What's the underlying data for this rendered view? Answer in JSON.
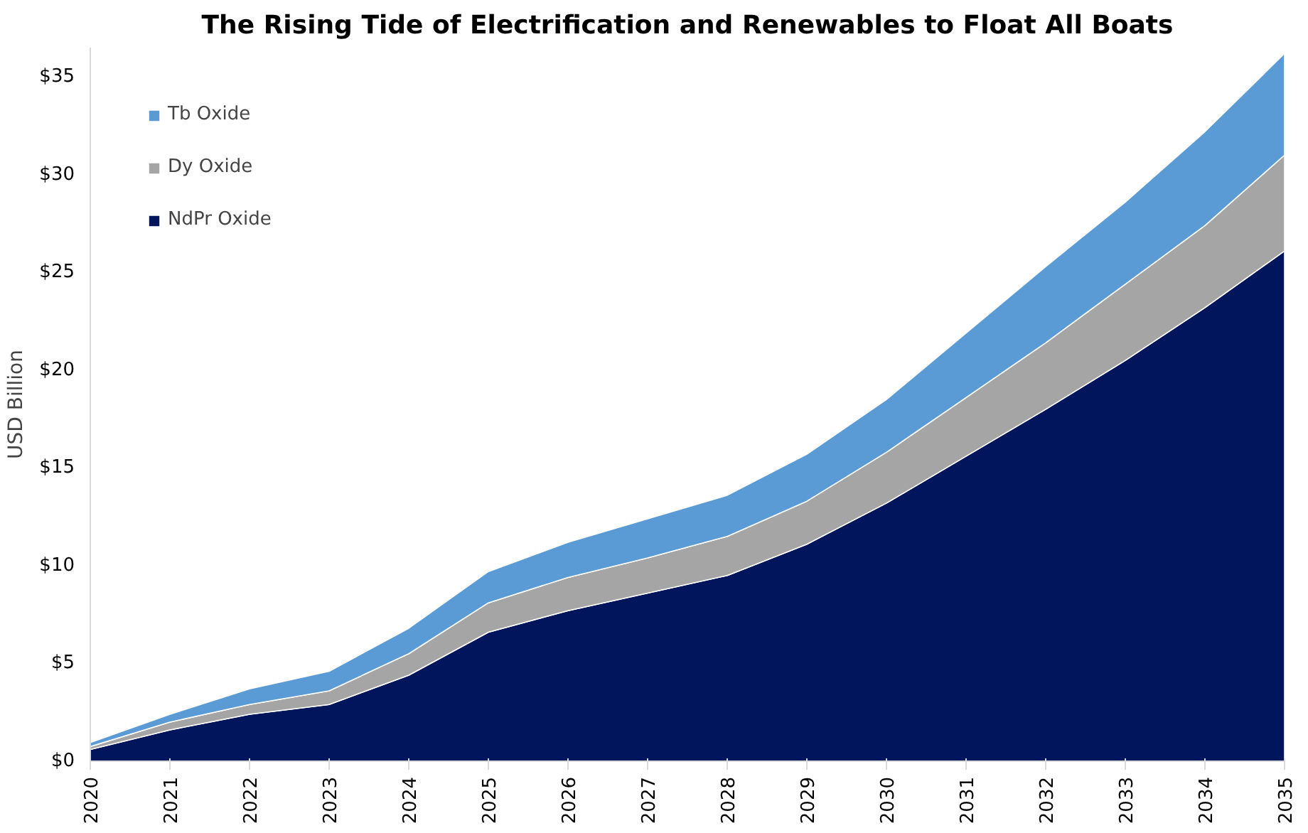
{
  "chart_data": {
    "type": "area",
    "stacked": true,
    "title": "The Rising Tide of Electrification and Renewables to Float All Boats",
    "ylabel": "USD Billion",
    "categories": [
      "2020",
      "2021",
      "2022",
      "2023",
      "2024",
      "2025",
      "2026",
      "2027",
      "2028",
      "2029",
      "2030",
      "2031",
      "2032",
      "2033",
      "2034",
      "2035"
    ],
    "series": [
      {
        "name": "NdPr Oxide",
        "color": "#00155c",
        "values": [
          0.6,
          1.6,
          2.4,
          2.9,
          4.4,
          6.6,
          7.7,
          8.6,
          9.5,
          11.1,
          13.2,
          15.6,
          18.0,
          20.5,
          23.2,
          26.1
        ]
      },
      {
        "name": "Dy Oxide",
        "color": "#a5a5a5",
        "values": [
          0.15,
          0.4,
          0.5,
          0.7,
          1.1,
          1.5,
          1.7,
          1.8,
          2.0,
          2.2,
          2.6,
          3.0,
          3.4,
          3.9,
          4.2,
          4.9
        ]
      },
      {
        "name": "Tb Oxide",
        "color": "#5b9bd5",
        "values": [
          0.2,
          0.4,
          0.8,
          1.0,
          1.3,
          1.6,
          1.8,
          2.0,
          2.1,
          2.4,
          2.7,
          3.3,
          3.9,
          4.2,
          4.8,
          5.2
        ]
      }
    ],
    "ylim": [
      0,
      36.5
    ],
    "yticks": [
      {
        "value": 0,
        "label": "$0"
      },
      {
        "value": 5,
        "label": "$5"
      },
      {
        "value": 10,
        "label": "$10"
      },
      {
        "value": 15,
        "label": "$15"
      },
      {
        "value": 20,
        "label": "$20"
      },
      {
        "value": 25,
        "label": "$25"
      },
      {
        "value": 30,
        "label": "$30"
      },
      {
        "value": 35,
        "label": "$35"
      }
    ],
    "grid": false,
    "legend": "top left"
  }
}
